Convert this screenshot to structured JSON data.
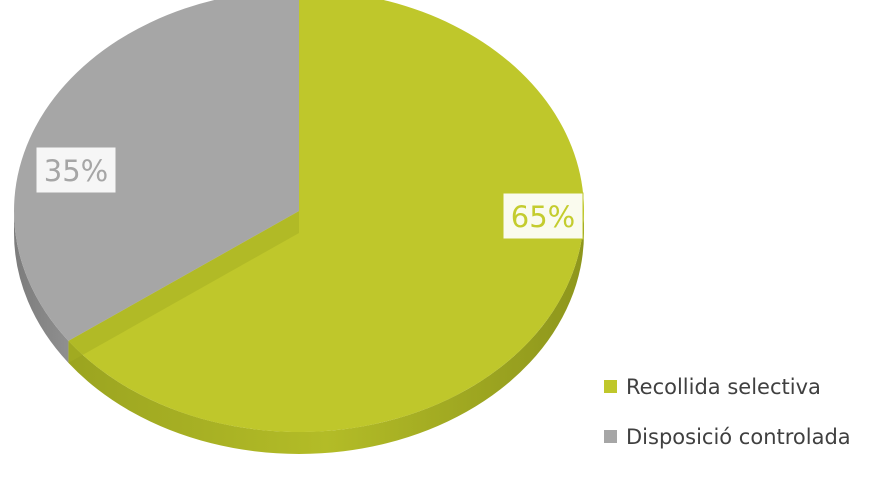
{
  "chart_data": {
    "type": "pie",
    "style": "3d",
    "title": "",
    "categories": [
      "Recollida selectiva",
      "Disposició controlada"
    ],
    "values": [
      65,
      35
    ],
    "data_labels": [
      "65%",
      "35%"
    ],
    "colors": [
      "#bfc72b",
      "#a6a6a6"
    ],
    "legend": {
      "placement": "bottom-right",
      "entries": [
        "Recollida selectiva",
        "Disposició controlada"
      ]
    }
  }
}
